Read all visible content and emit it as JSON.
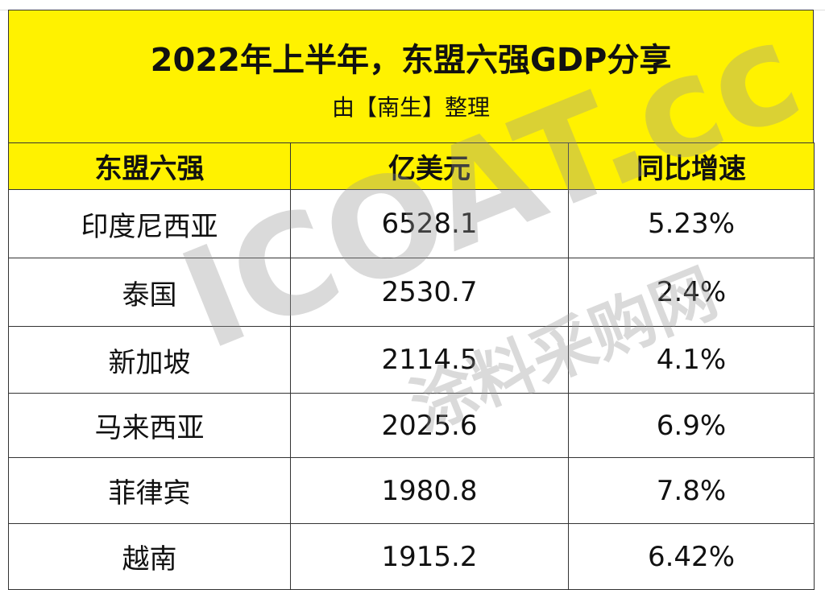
{
  "header": {
    "title": "2022年上半年，东盟六强GDP分享",
    "subtitle": "由【南生】整理"
  },
  "table": {
    "columns": [
      "东盟六强",
      "亿美元",
      "同比增速"
    ],
    "rows": [
      [
        "印度尼西亚",
        "6528.1",
        "5.23%"
      ],
      [
        "泰国",
        "2530.7",
        "2.4%"
      ],
      [
        "新加坡",
        "2114.5",
        "4.1%"
      ],
      [
        "马来西亚",
        "2025.6",
        "6.9%"
      ],
      [
        "菲律宾",
        "1980.8",
        "7.8%"
      ],
      [
        "越南",
        "1915.2",
        "6.42%"
      ]
    ]
  },
  "watermark": {
    "logo": "ICOAT.cc",
    "text": "涂料采购网"
  }
}
